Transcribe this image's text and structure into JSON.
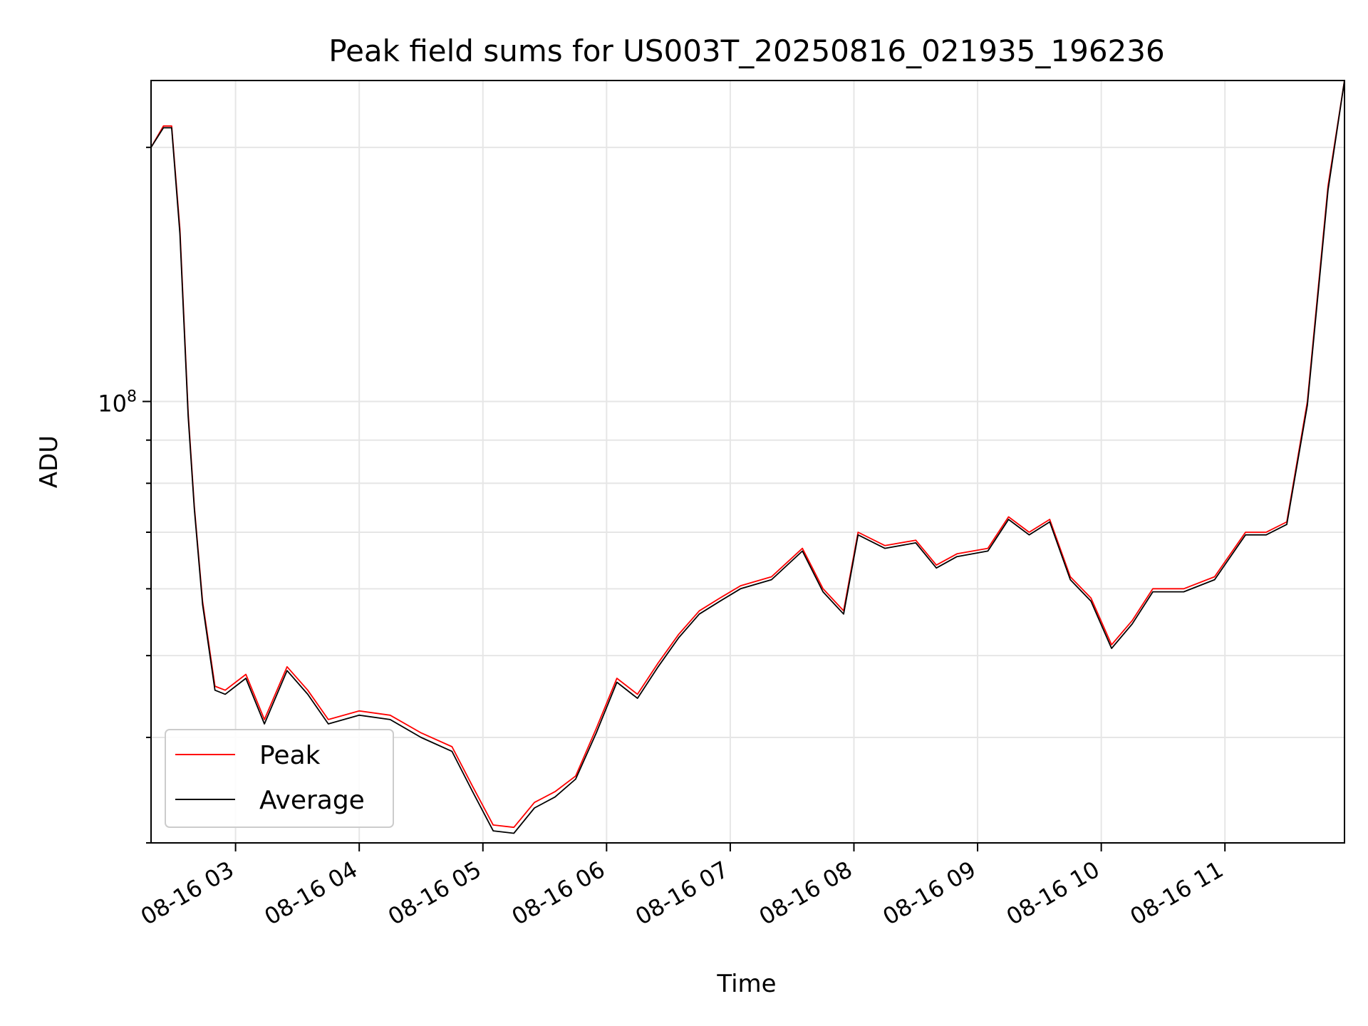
{
  "chart_data": {
    "type": "line",
    "title": "Peak field sums for US003T_20250816_021935_196236",
    "xlabel": "Time",
    "ylabel": "ADU",
    "yscale": "log",
    "xlim": [
      "08-16 02:19",
      "08-16 11:58"
    ],
    "ylim": [
      30000000,
      240000000
    ],
    "x_ticks": [
      "08-16 03",
      "08-16 04",
      "08-16 05",
      "08-16 06",
      "08-16 07",
      "08-16 08",
      "08-16 09",
      "08-16 10",
      "08-16 11"
    ],
    "y_major_tick_label": "10^8",
    "grid": true,
    "legend_position": "lower-left",
    "colors": {
      "peak": "#ff0000",
      "average": "#000000"
    },
    "series": [
      {
        "name": "Peak",
        "color": "#ff0000",
        "x": [
          "08-16 02:19",
          "08-16 02:25",
          "08-16 02:29",
          "08-16 02:33",
          "08-16 02:37",
          "08-16 02:40",
          "08-16 02:44",
          "08-16 02:50",
          "08-16 02:55",
          "08-16 03:05",
          "08-16 03:14",
          "08-16 03:25",
          "08-16 03:35",
          "08-16 03:45",
          "08-16 04:00",
          "08-16 04:15",
          "08-16 04:30",
          "08-16 04:45",
          "08-16 04:55",
          "08-16 05:05",
          "08-16 05:15",
          "08-16 05:25",
          "08-16 05:35",
          "08-16 05:45",
          "08-16 05:55",
          "08-16 06:05",
          "08-16 06:15",
          "08-16 06:25",
          "08-16 06:35",
          "08-16 06:45",
          "08-16 06:55",
          "08-16 07:05",
          "08-16 07:20",
          "08-16 07:35",
          "08-16 07:45",
          "08-16 07:55",
          "08-16 08:02",
          "08-16 08:15",
          "08-16 08:30",
          "08-16 08:40",
          "08-16 08:50",
          "08-16 09:05",
          "08-16 09:15",
          "08-16 09:25",
          "08-16 09:35",
          "08-16 09:45",
          "08-16 09:55",
          "08-16 10:05",
          "08-16 10:15",
          "08-16 10:25",
          "08-16 10:40",
          "08-16 10:55",
          "08-16 11:10",
          "08-16 11:20",
          "08-16 11:30",
          "08-16 11:40",
          "08-16 11:50",
          "08-16 11:58"
        ],
        "values": [
          200000000,
          212000000,
          212000000,
          160000000,
          97000000,
          75000000,
          58000000,
          46000000,
          45500000,
          47500000,
          42000000,
          48500000,
          45500000,
          42000000,
          43000000,
          42500000,
          40500000,
          39000000,
          35000000,
          31500000,
          31300000,
          33500000,
          34500000,
          36000000,
          41000000,
          47000000,
          45000000,
          49000000,
          53000000,
          56500000,
          58500000,
          60500000,
          62000000,
          67000000,
          60000000,
          56500000,
          70000000,
          67500000,
          68500000,
          64000000,
          66000000,
          67000000,
          73000000,
          70000000,
          72500000,
          62000000,
          58500000,
          51500000,
          55000000,
          60000000,
          60000000,
          62000000,
          70000000,
          70000000,
          72000000,
          100000000,
          180000000,
          240000000
        ]
      },
      {
        "name": "Average",
        "color": "#000000",
        "x": [
          "08-16 02:19",
          "08-16 02:25",
          "08-16 02:29",
          "08-16 02:33",
          "08-16 02:37",
          "08-16 02:40",
          "08-16 02:44",
          "08-16 02:50",
          "08-16 02:55",
          "08-16 03:05",
          "08-16 03:14",
          "08-16 03:25",
          "08-16 03:35",
          "08-16 03:45",
          "08-16 04:00",
          "08-16 04:15",
          "08-16 04:30",
          "08-16 04:45",
          "08-16 04:55",
          "08-16 05:05",
          "08-16 05:15",
          "08-16 05:25",
          "08-16 05:35",
          "08-16 05:45",
          "08-16 05:55",
          "08-16 06:05",
          "08-16 06:15",
          "08-16 06:25",
          "08-16 06:35",
          "08-16 06:45",
          "08-16 06:55",
          "08-16 07:05",
          "08-16 07:20",
          "08-16 07:35",
          "08-16 07:45",
          "08-16 07:55",
          "08-16 08:02",
          "08-16 08:15",
          "08-16 08:30",
          "08-16 08:40",
          "08-16 08:50",
          "08-16 09:05",
          "08-16 09:15",
          "08-16 09:25",
          "08-16 09:35",
          "08-16 09:45",
          "08-16 09:55",
          "08-16 10:05",
          "08-16 10:15",
          "08-16 10:25",
          "08-16 10:40",
          "08-16 10:55",
          "08-16 11:10",
          "08-16 11:20",
          "08-16 11:30",
          "08-16 11:40",
          "08-16 11:50",
          "08-16 11:58"
        ],
        "values": [
          200000000,
          211000000,
          211000000,
          158000000,
          96000000,
          74500000,
          57500000,
          45500000,
          45000000,
          47000000,
          41500000,
          48000000,
          45000000,
          41500000,
          42500000,
          42000000,
          40000000,
          38500000,
          34500000,
          31000000,
          30800000,
          33000000,
          34000000,
          35700000,
          40500000,
          46500000,
          44500000,
          48500000,
          52500000,
          56000000,
          58000000,
          60000000,
          61500000,
          66500000,
          59500000,
          56000000,
          69500000,
          67000000,
          68000000,
          63500000,
          65500000,
          66500000,
          72500000,
          69500000,
          72000000,
          61500000,
          58000000,
          51000000,
          54500000,
          59500000,
          59500000,
          61500000,
          69500000,
          69500000,
          71500000,
          99000000,
          178000000,
          240000000
        ]
      }
    ]
  }
}
